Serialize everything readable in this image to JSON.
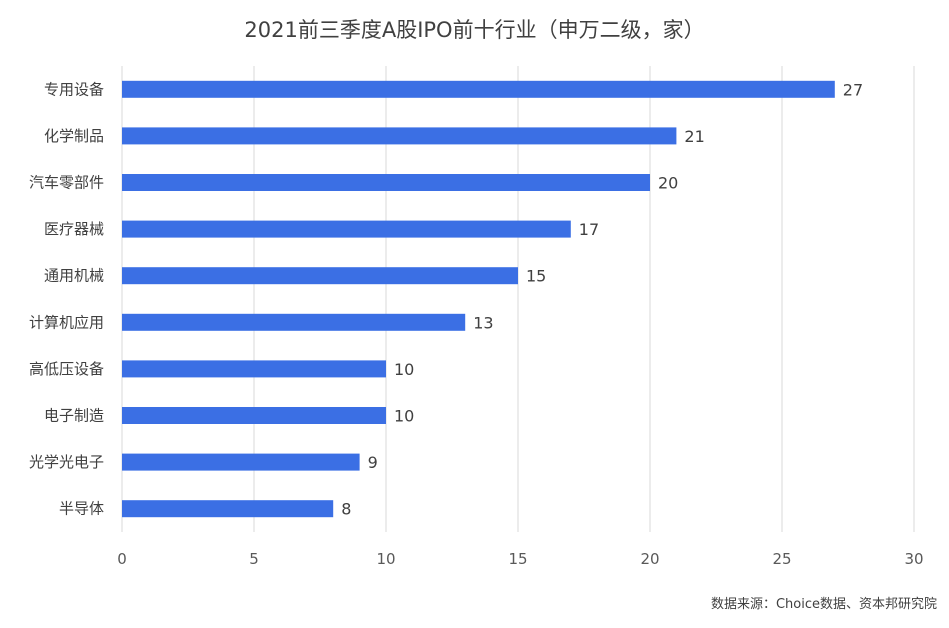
{
  "chart_data": {
    "type": "bar",
    "orientation": "horizontal",
    "title": "2021前三季度A股IPO前十行业（申万二级，家）",
    "categories": [
      "专用设备",
      "化学制品",
      "汽车零部件",
      "医疗器械",
      "通用机械",
      "计算机应用",
      "高低压设备",
      "电子制造",
      "光学光电子",
      "半导体"
    ],
    "values": [
      27,
      21,
      20,
      17,
      15,
      13,
      10,
      10,
      9,
      8
    ],
    "xlim": [
      0,
      30
    ],
    "xticks": [
      0,
      5,
      10,
      15,
      20,
      25,
      30
    ],
    "xlabel": "",
    "ylabel": "",
    "grid": "vertical",
    "data_labels": true,
    "bar_color": "#3b6fe4",
    "source": "数据来源：Choice数据、资本邦研究院"
  }
}
